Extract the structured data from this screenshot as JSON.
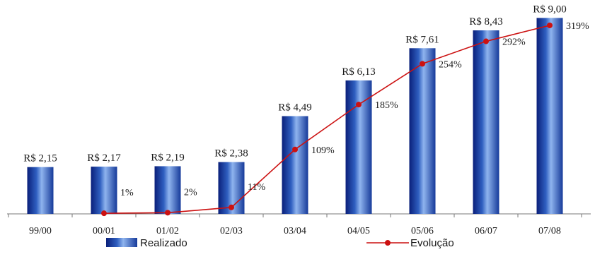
{
  "chart_data": {
    "type": "bar",
    "categories": [
      "99/00",
      "00/01",
      "01/02",
      "02/03",
      "03/04",
      "04/05",
      "05/06",
      "06/07",
      "07/08"
    ],
    "series": [
      {
        "name": "Realizado",
        "type": "bar",
        "values": [
          2.15,
          2.17,
          2.19,
          2.38,
          4.49,
          6.13,
          7.61,
          8.43,
          9.0
        ],
        "labels": [
          "R$ 2,15",
          "R$ 2,17",
          "R$ 2,19",
          "R$ 2,38",
          "R$ 4,49",
          "R$ 6,13",
          "R$ 7,61",
          "R$ 8,43",
          "R$ 9,00"
        ],
        "color": "#2f5fc0"
      },
      {
        "name": "Evolução",
        "type": "line",
        "values": [
          null,
          1,
          2,
          11,
          109,
          185,
          254,
          292,
          319
        ],
        "labels": [
          "",
          "1%",
          "2%",
          "11%",
          "109%",
          "185%",
          "254%",
          "292%",
          "319%"
        ],
        "color": "#cc1111"
      }
    ],
    "ylim": [
      0,
      9.5
    ],
    "y2lim": [
      0,
      350
    ],
    "grid": false,
    "legend_position": "bottom"
  }
}
